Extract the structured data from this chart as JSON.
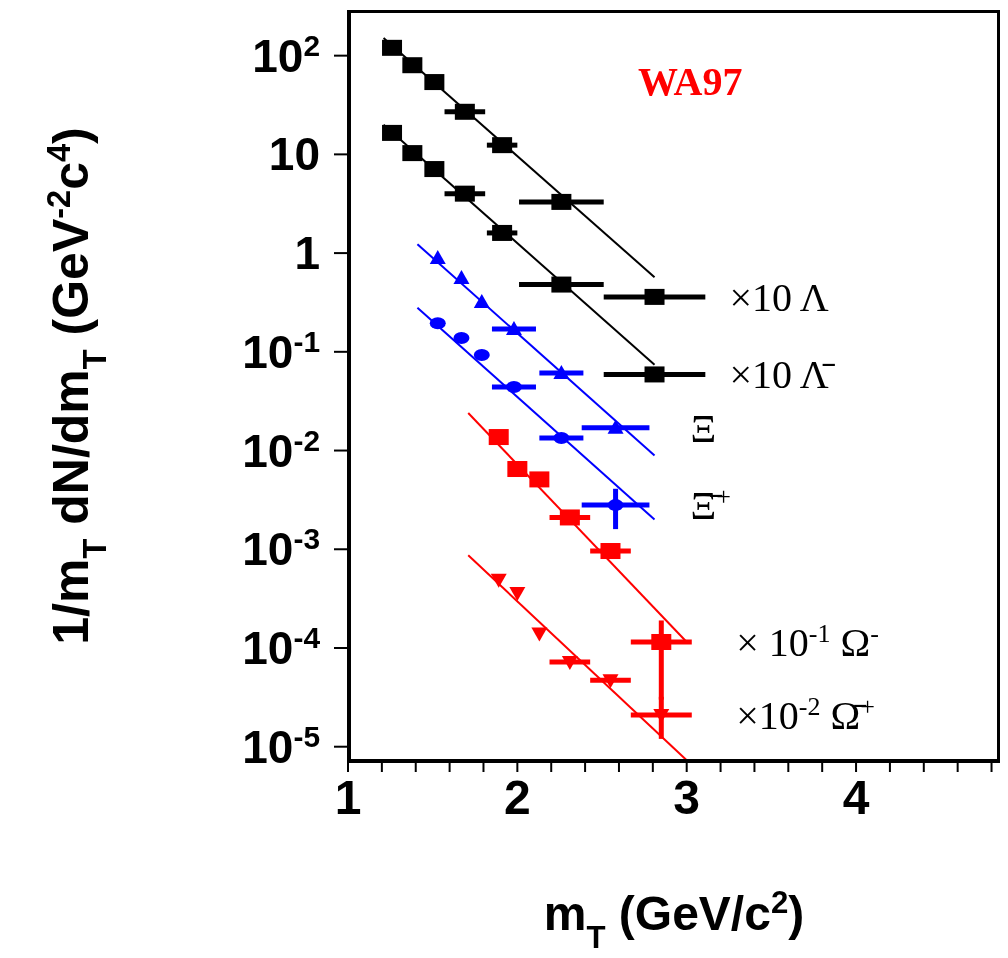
{
  "chart_data": {
    "type": "scatter",
    "xlabel": "m$_{T}$ (GeV/c$^{2}$)",
    "ylabel": "1/m$_{T}$ dN/dm$_{T}$ (GeV$^{-2}$c$^{4}$)",
    "annotations": [
      "WA97"
    ],
    "log": "y",
    "xlim": [
      1,
      4.85
    ],
    "xticks": [
      1,
      {
        "value": 1.2,
        "label": null
      },
      {
        "value": 1.4,
        "label": null
      },
      {
        "value": 1.6,
        "label": null
      },
      {
        "value": 1.8,
        "label": null
      },
      2,
      {
        "value": 2.2,
        "label": null
      },
      {
        "value": 2.4,
        "label": null
      },
      {
        "value": 2.6,
        "label": null
      },
      {
        "value": 2.8,
        "label": null
      },
      3,
      {
        "value": 3.2,
        "label": null
      },
      {
        "value": 3.4,
        "label": null
      },
      {
        "value": 3.6,
        "label": null
      },
      {
        "value": 3.8,
        "label": null
      },
      4,
      {
        "value": 4.2,
        "label": null
      },
      {
        "value": 4.4,
        "label": null
      },
      {
        "value": 4.6,
        "label": null
      },
      {
        "value": 4.8,
        "label": null
      }
    ],
    "ylim": [
      7e-06,
      290
    ],
    "yticks": [
      {
        "value": 1e-05,
        "label": "10$^{-5}$"
      },
      {
        "value": 0.0001,
        "label": "10$^{-4}$"
      },
      {
        "value": 0.001,
        "label": "10$^{-3}$"
      },
      {
        "value": 0.01,
        "label": "10$^{-2}$"
      },
      {
        "value": 0.1,
        "label": "10$^{-1}$"
      },
      1,
      10,
      {
        "value": 100,
        "label": "10$^{2}$"
      }
    ],
    "series": [
      {
        "type": "line",
        "color": "#000000",
        "marker": "none",
        "x": [
          1.21,
          2.81
        ],
        "values": [
          151,
          0.57
        ]
      },
      {
        "type": "line",
        "color": "#000000",
        "marker": "none",
        "x": [
          1.21,
          2.81
        ],
        "values": [
          20,
          0.074
        ]
      },
      {
        "type": "line",
        "color": "#0000ff",
        "marker": "none",
        "x": [
          1.41,
          2.81
        ],
        "values": [
          1.23,
          0.0089
        ]
      },
      {
        "type": "line",
        "color": "#0000ff",
        "marker": "none",
        "x": [
          1.41,
          2.81
        ],
        "values": [
          0.28,
          0.002
        ]
      },
      {
        "type": "line",
        "color": "#ff0000",
        "marker": "none",
        "x": [
          1.71,
          3.0
        ],
        "values": [
          0.024,
          0.000115
        ]
      },
      {
        "type": "line",
        "color": "#ff0000",
        "marker": "none",
        "x": [
          1.71,
          3.0
        ],
        "values": [
          0.00087,
          7.3e-06
        ]
      },
      {
        "name": "×10 Λ",
        "color": "#000000",
        "marker": "square",
        "x": [
          1.26,
          1.38,
          1.51,
          1.69,
          1.91,
          2.26,
          2.81
        ],
        "values": [
          120,
          80,
          54,
          27,
          12.4,
          3.3,
          0.36
        ],
        "xerrors": [
          null,
          null,
          null,
          0.12,
          0.09,
          0.25,
          0.3
        ]
      },
      {
        "name": "×10 Λ̄",
        "color": "#000000",
        "marker": "square",
        "x": [
          1.26,
          1.38,
          1.51,
          1.69,
          1.91,
          2.26,
          2.81
        ],
        "values": [
          16.5,
          10.3,
          7.1,
          4.0,
          1.6,
          0.48,
          0.059
        ],
        "xerrors": [
          null,
          null,
          null,
          0.12,
          0.09,
          0.25,
          0.3
        ]
      },
      {
        "name": "Ξ",
        "color": "#0000ff",
        "marker": "triangle",
        "x": [
          1.53,
          1.67,
          1.79,
          1.98,
          2.26,
          2.58
        ],
        "values": [
          0.89,
          0.56,
          0.32,
          0.17,
          0.061,
          0.017
        ],
        "xerrors": [
          null,
          null,
          null,
          0.13,
          0.13,
          0.2
        ]
      },
      {
        "name": "Ξ̄$^{+}$",
        "color": "#0000ff",
        "marker": "circle",
        "x": [
          1.53,
          1.67,
          1.79,
          1.98,
          2.26,
          2.58
        ],
        "values": [
          0.195,
          0.138,
          0.093,
          0.044,
          0.0134,
          0.0028
        ],
        "xerrors": [
          null,
          null,
          null,
          0.13,
          0.13,
          0.2
        ],
        "errors": [
          null,
          null,
          null,
          null,
          null,
          [
            0.0016,
            0.0041
          ]
        ]
      },
      {
        "name": "× 10$^{-1}$ Ω$^{-}$",
        "color": "#ff0000",
        "marker": "square",
        "x": [
          1.89,
          2.0,
          2.13,
          2.31,
          2.55,
          2.85
        ],
        "values": [
          0.0137,
          0.0065,
          0.0051,
          0.0021,
          0.00096,
          0.000115
        ],
        "xerrors": [
          null,
          null,
          null,
          0.12,
          0.12,
          0.18
        ],
        "errors": [
          null,
          null,
          null,
          null,
          null,
          [
            3e-05,
            0.00019
          ]
        ]
      },
      {
        "name": "×10$^{-2}$ Ω̄$^{+}$",
        "color": "#ff0000",
        "marker": "triangle-down",
        "x": [
          1.89,
          2.0,
          2.13,
          2.31,
          2.55,
          2.85
        ],
        "values": [
          0.00049,
          0.00036,
          0.00014,
          7.2e-05,
          4.7e-05,
          2.1e-05
        ],
        "xerrors": [
          null,
          null,
          null,
          0.12,
          0.12,
          0.18
        ],
        "errors": [
          null,
          null,
          null,
          null,
          null,
          [
            1.2e-05,
            3.2e-05
          ]
        ]
      }
    ]
  }
}
